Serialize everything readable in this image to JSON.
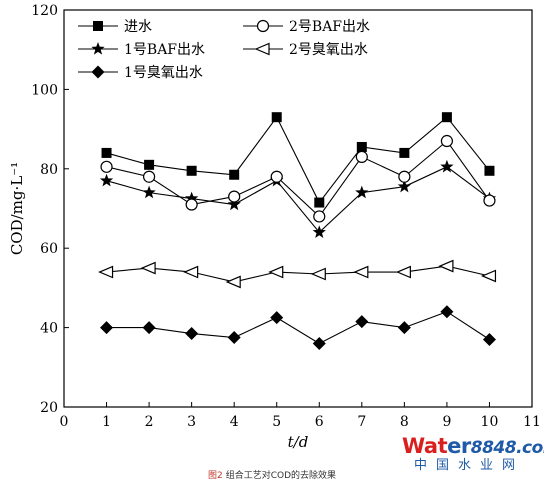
{
  "chart_data": {
    "type": "line",
    "xlabel": "t/d",
    "ylabel": "COD/mg·L⁻¹",
    "xlim": [
      0,
      11
    ],
    "ylim": [
      20,
      120
    ],
    "xticks": [
      "0",
      "1",
      "2",
      "3",
      "4",
      "5",
      "6",
      "7",
      "8",
      "9",
      "10",
      "11"
    ],
    "yticks": [
      "20",
      "40",
      "60",
      "80",
      "100",
      "120"
    ],
    "x": [
      1,
      2,
      3,
      4,
      5,
      6,
      7,
      8,
      9,
      10
    ],
    "grid": false,
    "legend_placement": "top-left",
    "series": [
      {
        "name": "进水",
        "marker": "filled-square",
        "values": [
          84,
          81,
          79.5,
          78.5,
          93,
          71.5,
          85.5,
          84,
          93,
          79.5
        ]
      },
      {
        "name": "1号BAF出水",
        "marker": "filled-star",
        "values": [
          77,
          74,
          72.5,
          71,
          77,
          64,
          74,
          75.5,
          80.5,
          72.5
        ]
      },
      {
        "name": "1号臭氧出水",
        "marker": "filled-diamond",
        "values": [
          40,
          40,
          38.5,
          37.5,
          42.5,
          36,
          41.5,
          40,
          44,
          37
        ]
      },
      {
        "name": "2号BAF出水",
        "marker": "open-circle",
        "values": [
          80.5,
          78,
          71,
          73,
          78,
          68,
          83,
          78,
          87,
          72
        ]
      },
      {
        "name": "2号臭氧出水",
        "marker": "open-left-triangle",
        "values": [
          54,
          55,
          54,
          51.5,
          54,
          53.5,
          54,
          54,
          55.5,
          53
        ]
      }
    ]
  },
  "caption": {
    "figure_number": "图2",
    "text": "组合工艺对COD的去除效果"
  },
  "watermark": {
    "brand_part1": "Wat",
    "brand_part2": "er",
    "brand_number": "8848",
    "brand_domain": ".com",
    "subtitle": "中国水业网"
  }
}
